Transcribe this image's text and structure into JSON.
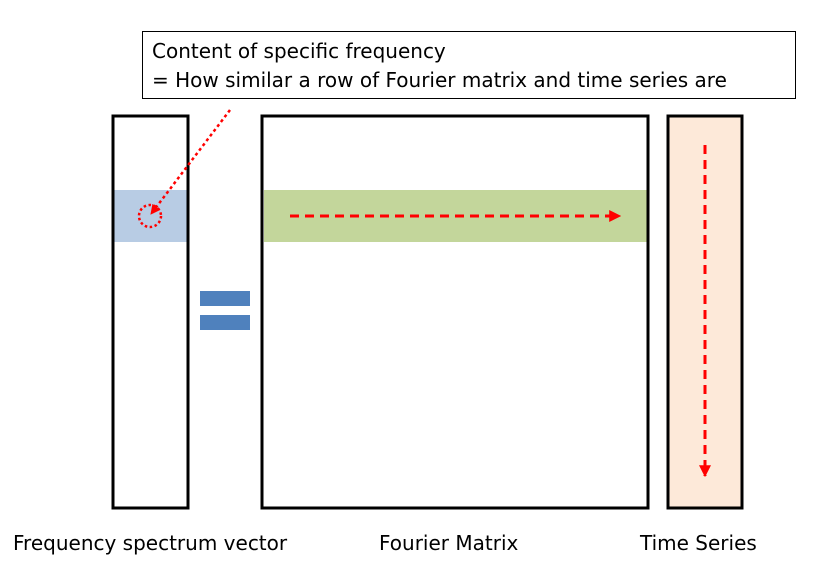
{
  "callout": {
    "line1": "Content of specific frequency",
    "line2": "= How similar a row of Fourier matrix and time series are"
  },
  "labels": {
    "frequency_vector": "Frequency spectrum vector",
    "fourier_matrix": "Fourier Matrix",
    "time_series": "Time Series"
  },
  "colors": {
    "highlight_cell": "#b8cce4",
    "highlight_row": "#c3d69b",
    "time_series_fill": "#fde9d9",
    "equals_sign": "#4f81bd",
    "arrow": "#ff0000",
    "outline": "#000000"
  },
  "icons": {
    "equals": "equals-sign-icon",
    "row_arrow": "dashed-right-arrow-icon",
    "column_arrow": "dashed-down-arrow-icon",
    "pointer": "dotted-pointer-arrow-icon",
    "circle": "dotted-circle-icon"
  }
}
